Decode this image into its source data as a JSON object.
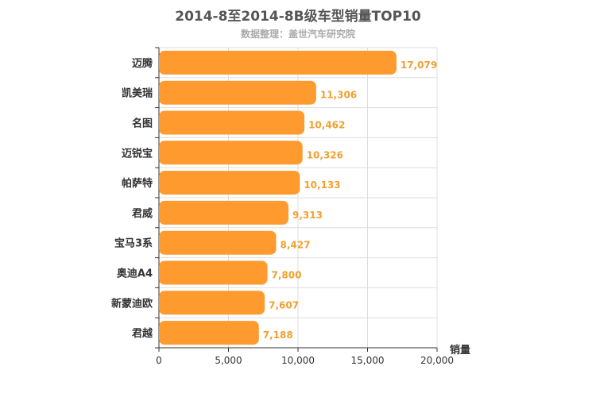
{
  "title": "2014-8至2014-8B级车型销量TOP10",
  "subtitle": "数据整理：盖世汽车研究院",
  "chart_data": {
    "type": "bar",
    "orientation": "horizontal",
    "categories": [
      "迈腾",
      "凯美瑞",
      "名图",
      "迈锐宝",
      "帕萨特",
      "君威",
      "宝马3系",
      "奥迪A4",
      "新蒙迪欧",
      "君越"
    ],
    "values": [
      17079,
      11306,
      10462,
      10326,
      10133,
      9313,
      8427,
      7800,
      7607,
      7188
    ],
    "value_labels": [
      "17,079",
      "11,306",
      "10,462",
      "10,326",
      "10,133",
      "9,313",
      "8,427",
      "7,800",
      "7,607",
      "7,188"
    ],
    "xlabel": "销量",
    "xlim": [
      0,
      20000
    ],
    "xticks": [
      "0",
      "5,000",
      "10,000",
      "15,000",
      "20,000"
    ],
    "bar_color": "#FF9A2E",
    "label_color": "#F0A030",
    "grid": true
  }
}
